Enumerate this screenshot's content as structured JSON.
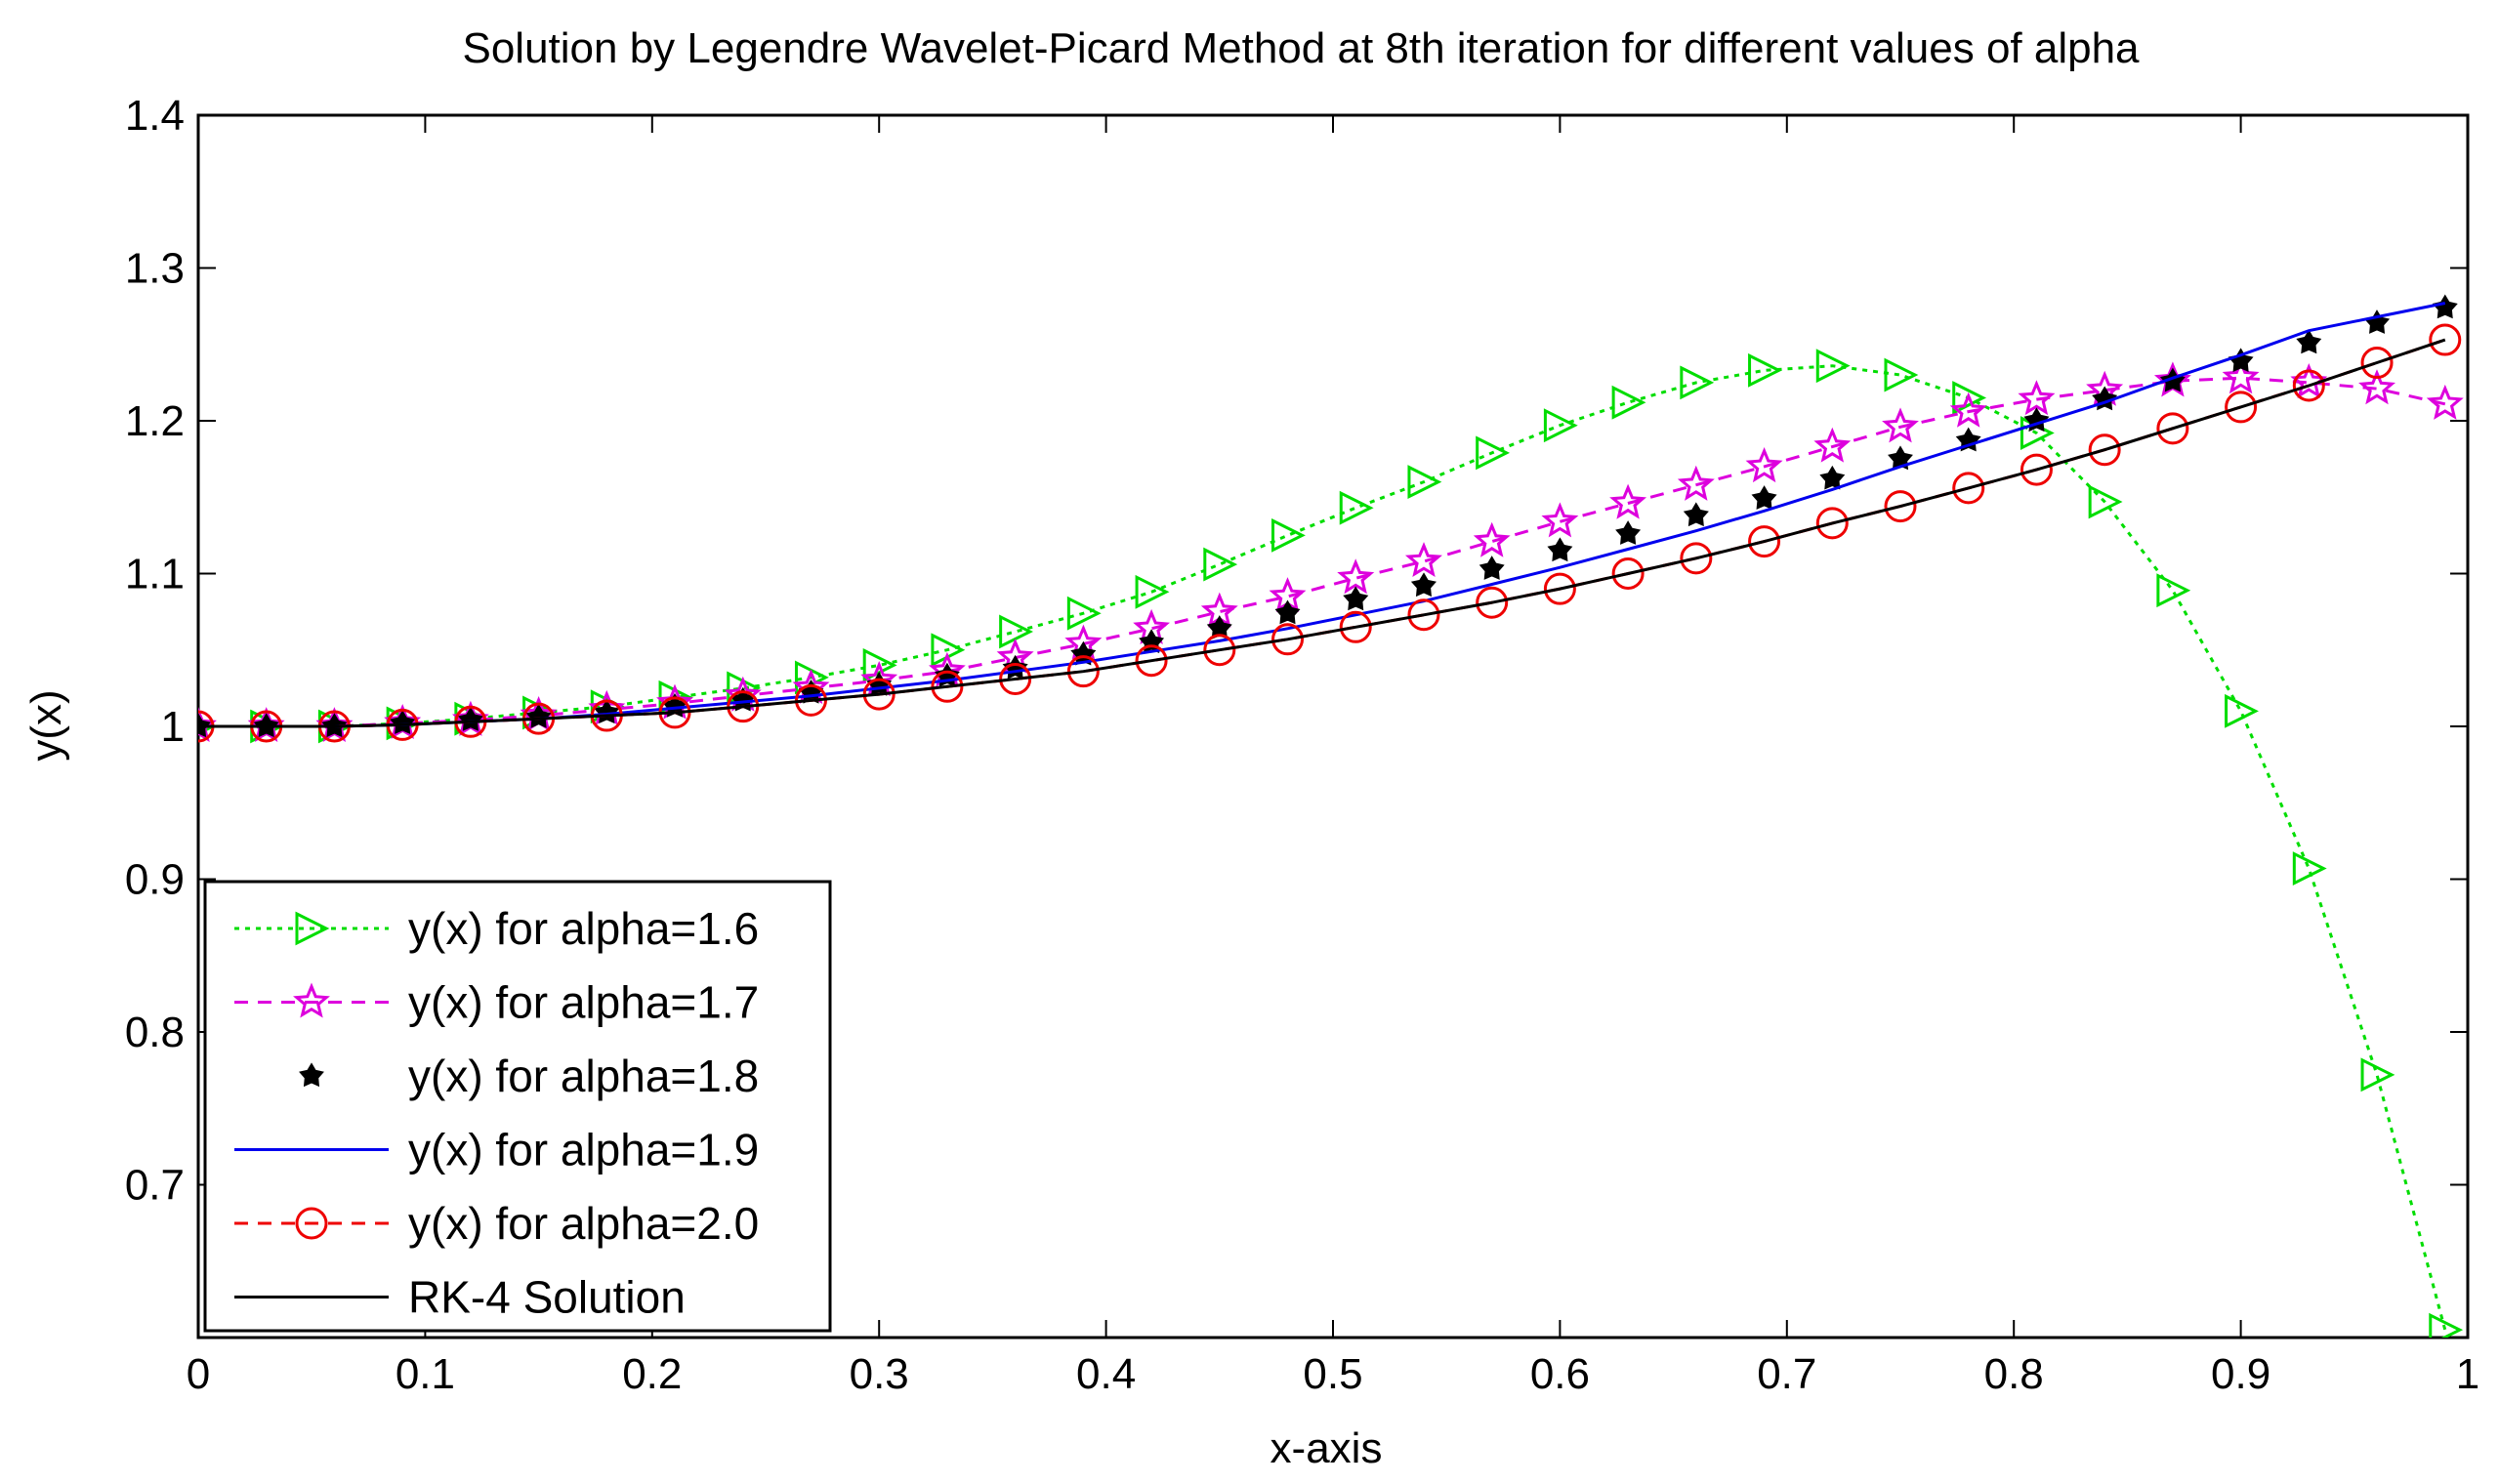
{
  "chart_data": {
    "type": "line",
    "title": "Solution by Legendre Wavelet-Picard Method at 8th iteration for different values of alpha",
    "xlabel": "x-axis",
    "ylabel": "y(x)",
    "xlim": [
      0,
      1
    ],
    "ylim": [
      0.6,
      1.4
    ],
    "xticks": [
      0,
      0.1,
      0.2,
      0.3,
      0.4,
      0.5,
      0.6,
      0.7,
      0.8,
      0.9,
      1
    ],
    "xtick_labels": [
      "0",
      "0.1",
      "0.2",
      "0.3",
      "0.4",
      "0.5",
      "0.6",
      "0.7",
      "0.8",
      "0.9",
      "1"
    ],
    "yticks": [
      0.7,
      0.8,
      0.9,
      1,
      1.1,
      1.2,
      1.3,
      1.4
    ],
    "ytick_labels": [
      "0.7",
      "0.8",
      "0.9",
      "1",
      "1.1",
      "1.2",
      "1.3",
      "1.4"
    ],
    "grid": false,
    "legend_position": "bottom-left",
    "x": [
      0,
      0.03,
      0.06,
      0.09,
      0.12,
      0.15,
      0.18,
      0.21,
      0.24,
      0.27,
      0.3,
      0.33,
      0.36,
      0.39,
      0.42,
      0.45,
      0.48,
      0.51,
      0.54,
      0.57,
      0.6,
      0.63,
      0.66,
      0.69,
      0.72,
      0.75,
      0.78,
      0.81,
      0.84,
      0.87,
      0.9,
      0.93,
      0.96,
      0.99
    ],
    "series": [
      {
        "name": "y(x) for alpha=1.6",
        "color": "#00dd00",
        "line_style": "dotted",
        "marker": "triangle-right",
        "values": [
          1.0,
          1.0,
          1.0,
          1.002,
          1.005,
          1.009,
          1.013,
          1.019,
          1.025,
          1.032,
          1.04,
          1.05,
          1.062,
          1.074,
          1.088,
          1.106,
          1.125,
          1.143,
          1.16,
          1.179,
          1.197,
          1.212,
          1.225,
          1.233,
          1.236,
          1.23,
          1.215,
          1.192,
          1.147,
          1.089,
          1.01,
          0.907,
          0.772,
          0.605
        ]
      },
      {
        "name": "y(x) for alpha=1.7",
        "color": "#dd00dd",
        "line_style": "dashed",
        "marker": "star",
        "values": [
          1.0,
          1.0,
          1.0,
          1.002,
          1.004,
          1.007,
          1.011,
          1.015,
          1.02,
          1.025,
          1.03,
          1.036,
          1.045,
          1.054,
          1.064,
          1.075,
          1.085,
          1.097,
          1.108,
          1.121,
          1.134,
          1.146,
          1.158,
          1.17,
          1.183,
          1.196,
          1.206,
          1.214,
          1.22,
          1.226,
          1.228,
          1.225,
          1.221,
          1.211
        ]
      },
      {
        "name": "y(x) for alpha=1.8",
        "color": "#000000",
        "line_style": "none",
        "marker": "star-filled",
        "values": [
          1.0,
          1.0,
          1.0,
          1.002,
          1.004,
          1.006,
          1.009,
          1.013,
          1.017,
          1.022,
          1.027,
          1.033,
          1.038,
          1.047,
          1.055,
          1.064,
          1.074,
          1.083,
          1.092,
          1.103,
          1.115,
          1.126,
          1.138,
          1.149,
          1.162,
          1.175,
          1.187,
          1.2,
          1.214,
          1.226,
          1.239,
          1.251,
          1.264,
          1.274
        ]
      },
      {
        "name": "y(x) for alpha=1.9",
        "color": "#0000ee",
        "line_style": "solid",
        "marker": "none",
        "values": [
          1.0,
          1.0,
          1.0,
          1.001,
          1.003,
          1.005,
          1.008,
          1.012,
          1.016,
          1.02,
          1.025,
          1.03,
          1.036,
          1.042,
          1.049,
          1.056,
          1.064,
          1.073,
          1.082,
          1.093,
          1.104,
          1.116,
          1.128,
          1.141,
          1.155,
          1.17,
          1.184,
          1.198,
          1.212,
          1.228,
          1.243,
          1.259,
          1.268,
          1.277
        ]
      },
      {
        "name": "y(x) for alpha=2.0",
        "color": "#ee0000",
        "line_style": "dashed",
        "marker": "circle",
        "values": [
          1.0,
          1.0,
          1.0,
          1.001,
          1.003,
          1.005,
          1.007,
          1.009,
          1.013,
          1.017,
          1.021,
          1.026,
          1.031,
          1.036,
          1.043,
          1.05,
          1.057,
          1.065,
          1.073,
          1.081,
          1.09,
          1.1,
          1.11,
          1.121,
          1.133,
          1.144,
          1.156,
          1.168,
          1.181,
          1.195,
          1.209,
          1.223,
          1.238,
          1.253
        ]
      },
      {
        "name": "RK-4 Solution",
        "color": "#000000",
        "line_style": "solid",
        "marker": "none",
        "values": [
          1.0,
          1.0,
          1.0,
          1.001,
          1.003,
          1.005,
          1.007,
          1.009,
          1.013,
          1.017,
          1.021,
          1.026,
          1.031,
          1.036,
          1.043,
          1.05,
          1.057,
          1.065,
          1.073,
          1.081,
          1.09,
          1.1,
          1.11,
          1.121,
          1.133,
          1.144,
          1.156,
          1.168,
          1.181,
          1.195,
          1.209,
          1.223,
          1.238,
          1.253
        ]
      }
    ]
  }
}
